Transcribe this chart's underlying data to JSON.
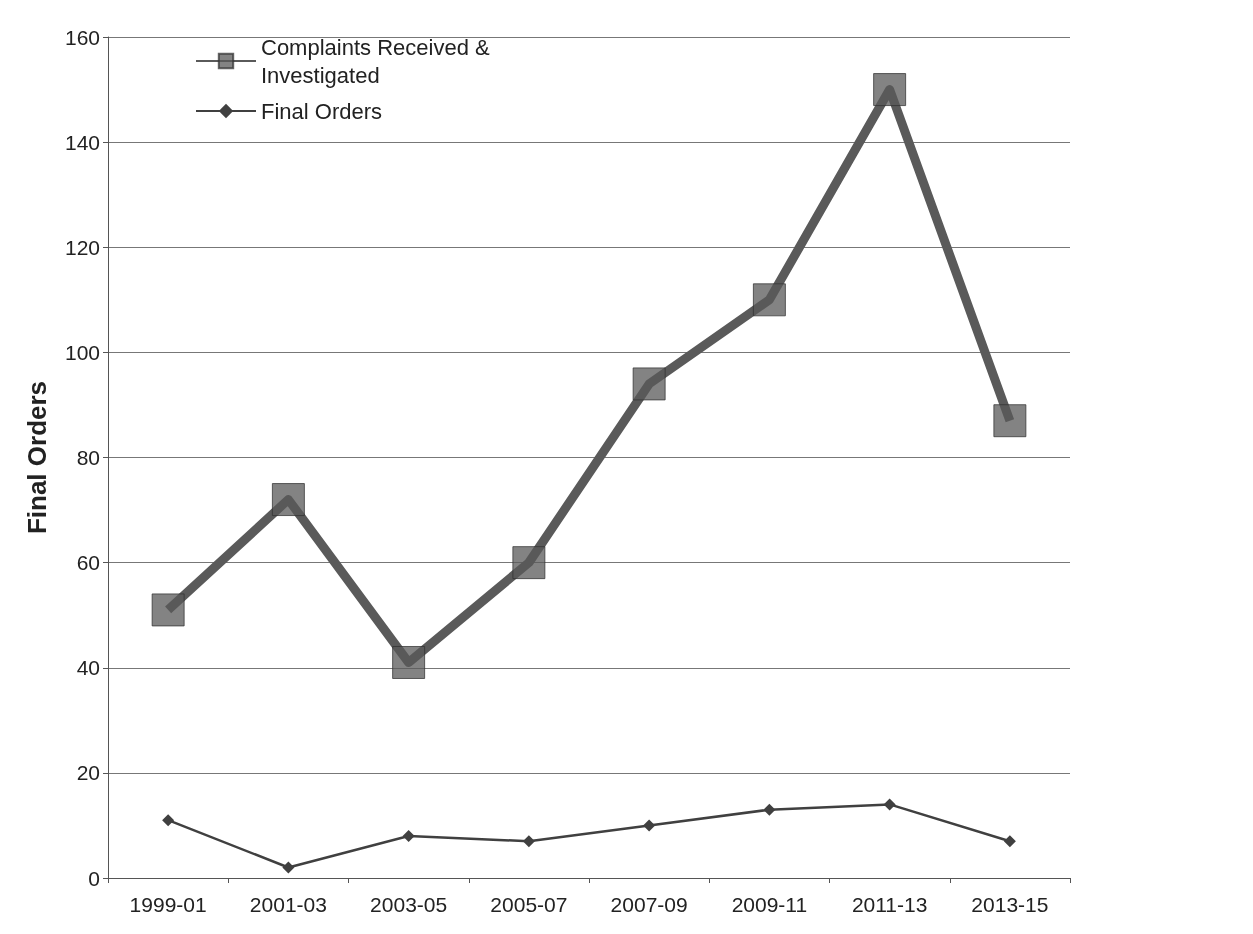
{
  "chart_data": {
    "type": "line",
    "ylabel": "Final Orders",
    "categories": [
      "1999-01",
      "2001-03",
      "2003-05",
      "2005-07",
      "2007-09",
      "2009-11",
      "2011-13",
      "2013-15"
    ],
    "series": [
      {
        "name": "Complaints Received & Investigated",
        "color": "#5a5a5a",
        "marker": "square",
        "values": [
          51,
          72,
          41,
          60,
          94,
          110,
          150,
          87
        ]
      },
      {
        "name": "Final Orders",
        "color": "#404040",
        "marker": "diamond",
        "values": [
          11,
          2,
          8,
          7,
          10,
          13,
          14,
          7
        ]
      }
    ],
    "ylim": [
      0,
      160
    ],
    "yticks": [
      0,
      20,
      40,
      60,
      80,
      100,
      120,
      140,
      160
    ],
    "grid": "y",
    "legend": "top left"
  }
}
